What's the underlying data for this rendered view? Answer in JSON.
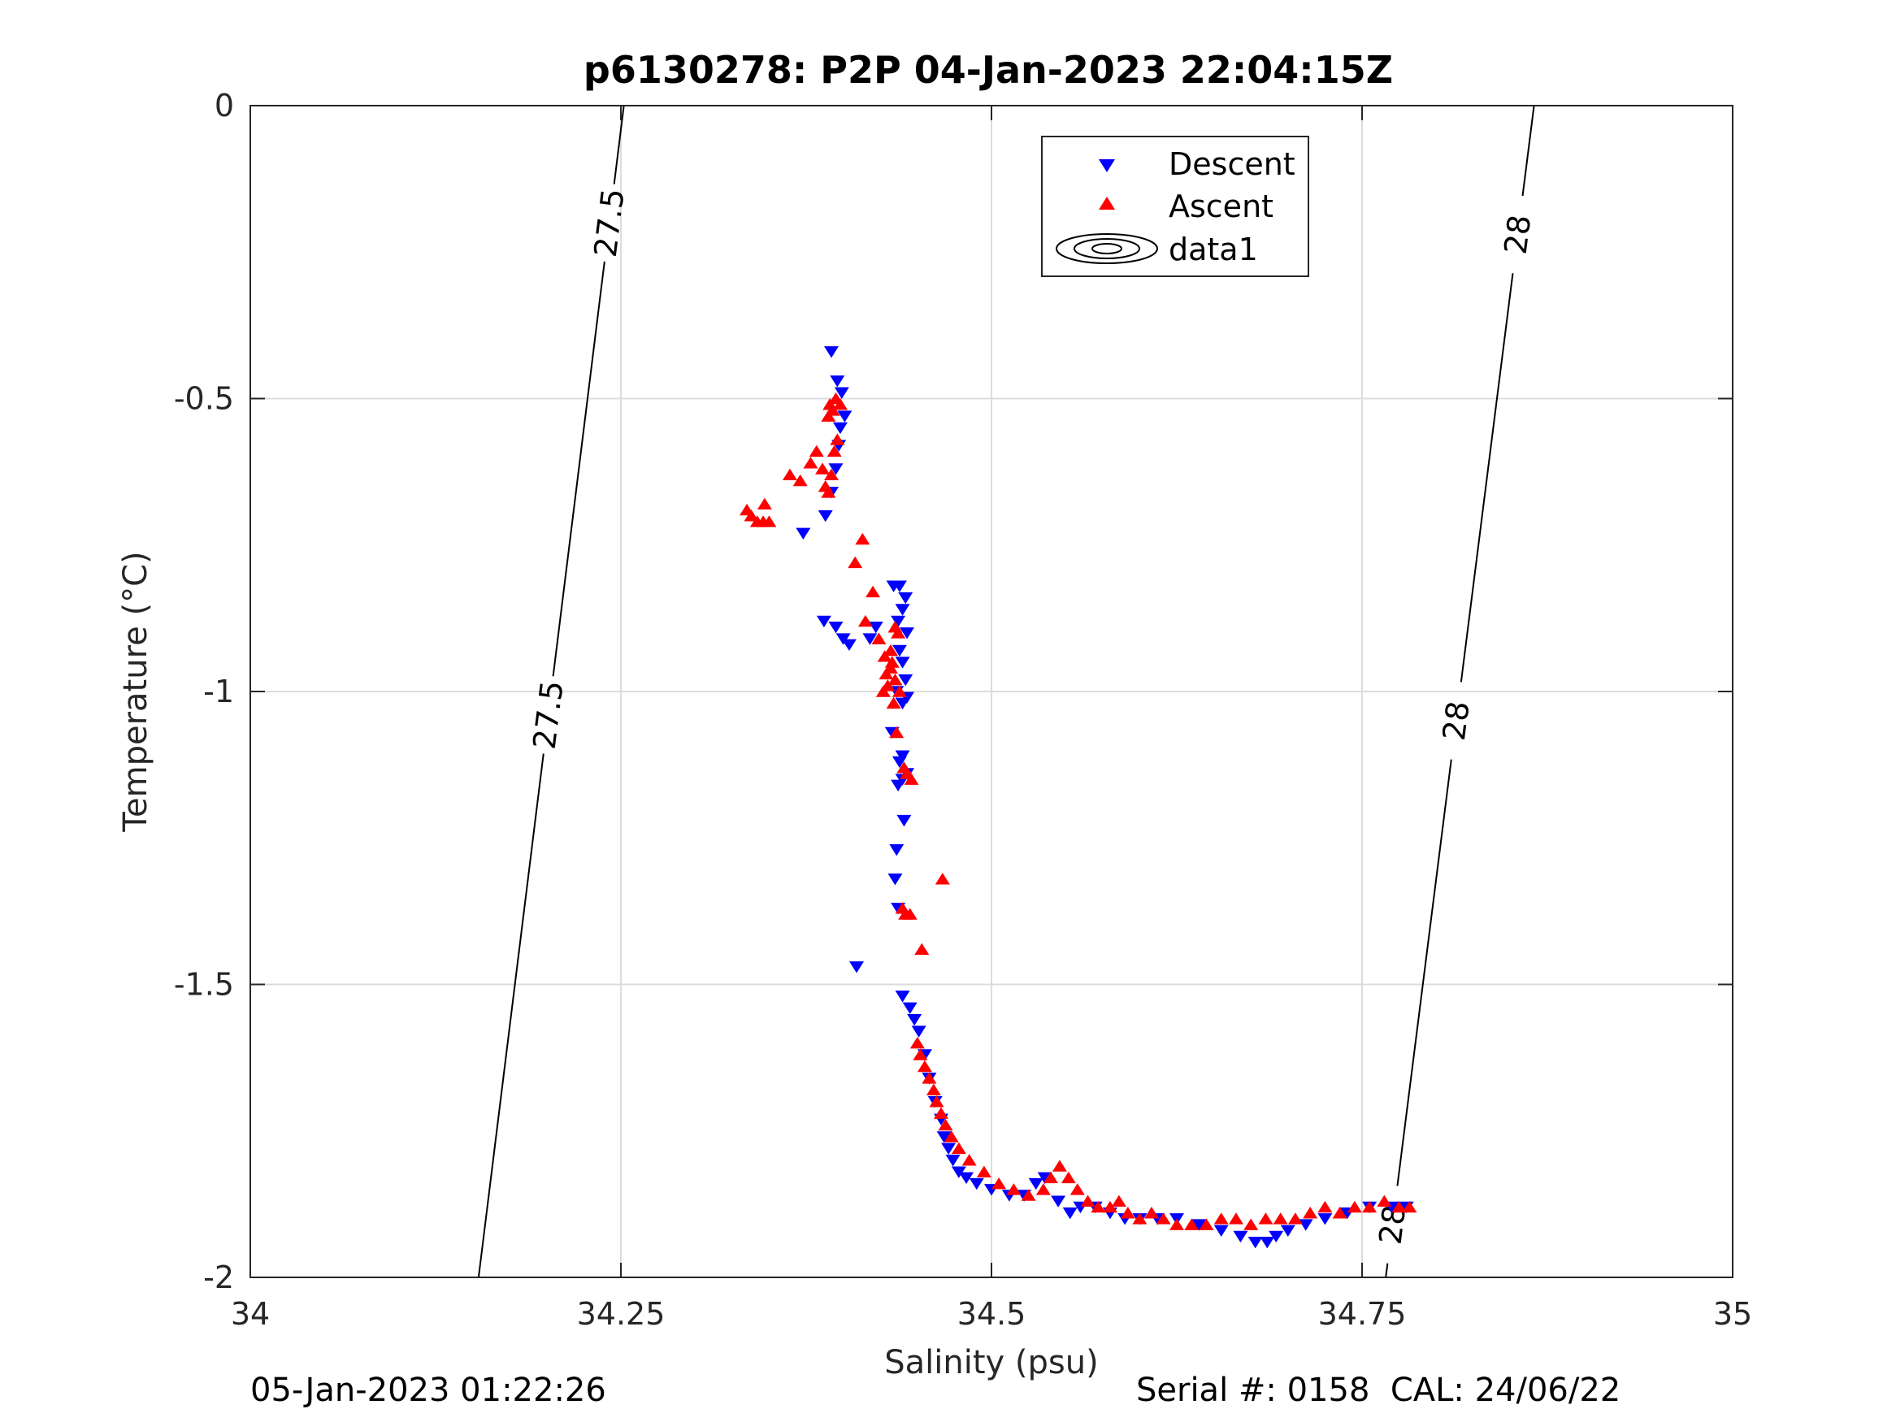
{
  "chart_data": {
    "type": "scatter",
    "title": "p6130278: P2P 04-Jan-2023 22:04:15Z",
    "xlabel": "Salinity (psu)",
    "ylabel": "Temperature (°C)",
    "xlim": [
      34,
      35
    ],
    "ylim": [
      -2,
      0
    ],
    "x_ticks": [
      "34",
      "34.25",
      "34.5",
      "34.75",
      "35"
    ],
    "y_ticks": [
      "0",
      "-0.5",
      "-1",
      "-1.5",
      "-2"
    ],
    "grid": true,
    "legend": {
      "placement": "top-center",
      "entries": [
        "Descent",
        "Ascent",
        "data1"
      ]
    },
    "series": [
      {
        "name": "Descent",
        "marker": "triangle-down",
        "color": "#0000ff",
        "x": [
          34.392,
          34.396,
          34.399,
          34.401,
          34.398,
          34.397,
          34.395,
          34.392,
          34.388,
          34.373,
          34.387,
          34.395,
          34.4,
          34.404,
          34.418,
          34.422,
          34.434,
          34.438,
          34.442,
          34.44,
          34.437,
          34.443,
          34.438,
          34.44,
          34.442,
          34.436,
          34.44,
          34.443,
          34.433,
          34.44,
          34.438,
          34.44,
          34.437,
          34.443,
          34.441,
          34.436,
          34.435,
          34.437,
          34.409,
          34.44,
          34.445,
          34.448,
          34.451,
          34.455,
          34.458,
          34.462,
          34.466,
          34.468,
          34.471,
          34.474,
          34.478,
          34.483,
          34.49,
          34.5,
          34.512,
          34.522,
          34.53,
          34.536,
          34.545,
          34.553,
          34.56,
          34.57,
          34.58,
          34.59,
          34.6,
          34.612,
          34.625,
          34.64,
          34.655,
          34.668,
          34.678,
          34.686,
          34.692,
          34.7,
          34.712,
          34.725,
          34.74,
          34.755,
          34.77,
          34.78
        ],
        "y": [
          -0.42,
          -0.47,
          -0.49,
          -0.53,
          -0.55,
          -0.58,
          -0.62,
          -0.66,
          -0.7,
          -0.73,
          -0.88,
          -0.89,
          -0.91,
          -0.92,
          -0.91,
          -0.89,
          -0.82,
          -0.82,
          -0.84,
          -0.86,
          -0.88,
          -0.9,
          -0.93,
          -0.95,
          -0.98,
          -1.0,
          -1.02,
          -1.01,
          -1.07,
          -1.11,
          -1.12,
          -1.15,
          -1.16,
          -1.14,
          -1.22,
          -1.27,
          -1.32,
          -1.37,
          -1.47,
          -1.52,
          -1.54,
          -1.56,
          -1.58,
          -1.62,
          -1.66,
          -1.7,
          -1.73,
          -1.76,
          -1.78,
          -1.8,
          -1.82,
          -1.83,
          -1.84,
          -1.85,
          -1.86,
          -1.86,
          -1.84,
          -1.83,
          -1.87,
          -1.89,
          -1.88,
          -1.88,
          -1.89,
          -1.9,
          -1.9,
          -1.9,
          -1.9,
          -1.91,
          -1.92,
          -1.93,
          -1.94,
          -1.94,
          -1.93,
          -1.92,
          -1.91,
          -1.9,
          -1.89,
          -1.88,
          -1.88,
          -1.88
        ]
      },
      {
        "name": "Ascent",
        "marker": "triangle-up",
        "color": "#ff0000",
        "x": [
          34.335,
          34.338,
          34.342,
          34.346,
          34.35,
          34.347,
          34.364,
          34.371,
          34.378,
          34.382,
          34.386,
          34.388,
          34.39,
          34.392,
          34.394,
          34.396,
          34.398,
          34.395,
          34.391,
          34.393,
          34.39,
          34.413,
          34.42,
          34.415,
          34.408,
          34.424,
          34.428,
          34.432,
          34.435,
          34.437,
          34.433,
          34.43,
          34.427,
          34.429,
          34.432,
          34.435,
          34.438,
          34.434,
          34.436,
          34.441,
          34.443,
          34.446,
          34.467,
          34.44,
          34.442,
          34.445,
          34.453,
          34.45,
          34.452,
          34.455,
          34.458,
          34.461,
          34.463,
          34.466,
          34.469,
          34.473,
          34.478,
          34.485,
          34.495,
          34.505,
          34.515,
          34.525,
          34.535,
          34.54,
          34.546,
          34.552,
          34.558,
          34.565,
          34.572,
          34.58,
          34.586,
          34.592,
          34.6,
          34.608,
          34.616,
          34.625,
          34.635,
          34.645,
          34.655,
          34.665,
          34.675,
          34.685,
          34.695,
          34.705,
          34.715,
          34.725,
          34.735,
          34.745,
          34.755,
          34.765,
          34.775,
          34.782
        ],
        "y": [
          -0.69,
          -0.7,
          -0.71,
          -0.71,
          -0.71,
          -0.68,
          -0.63,
          -0.64,
          -0.61,
          -0.59,
          -0.62,
          -0.65,
          -0.66,
          -0.63,
          -0.59,
          -0.57,
          -0.51,
          -0.5,
          -0.51,
          -0.52,
          -0.53,
          -0.74,
          -0.83,
          -0.88,
          -0.78,
          -0.91,
          -0.94,
          -0.93,
          -0.89,
          -0.9,
          -0.95,
          -0.99,
          -1.0,
          -0.97,
          -0.96,
          -0.98,
          -1.0,
          -1.02,
          -1.07,
          -1.13,
          -1.14,
          -1.15,
          -1.32,
          -1.37,
          -1.38,
          -1.38,
          -1.44,
          -1.6,
          -1.62,
          -1.64,
          -1.66,
          -1.68,
          -1.7,
          -1.72,
          -1.74,
          -1.76,
          -1.78,
          -1.8,
          -1.82,
          -1.84,
          -1.85,
          -1.86,
          -1.85,
          -1.83,
          -1.81,
          -1.83,
          -1.85,
          -1.87,
          -1.88,
          -1.88,
          -1.87,
          -1.89,
          -1.9,
          -1.89,
          -1.9,
          -1.91,
          -1.91,
          -1.91,
          -1.9,
          -1.9,
          -1.91,
          -1.9,
          -1.9,
          -1.9,
          -1.89,
          -1.88,
          -1.89,
          -1.88,
          -1.88,
          -1.87,
          -1.88,
          -1.88
        ]
      }
    ],
    "contours": [
      {
        "level": "27.5",
        "x": [
          34.154,
          34.252
        ],
        "y": [
          -2,
          0
        ],
        "labels": [
          {
            "text": "27.5",
            "y": -0.2
          },
          {
            "text": "27.5",
            "y": -1.04
          }
        ]
      },
      {
        "level": "28",
        "x": [
          34.766,
          34.866
        ],
        "y": [
          -2,
          0
        ],
        "labels": [
          {
            "text": "28",
            "y": -0.22
          },
          {
            "text": "28",
            "y": -1.05
          },
          {
            "text": "28",
            "y": -1.91
          }
        ]
      }
    ]
  },
  "footer": {
    "left": "05-Jan-2023 01:22:26",
    "right": "Serial #: 0158  CAL: 24/06/22"
  }
}
